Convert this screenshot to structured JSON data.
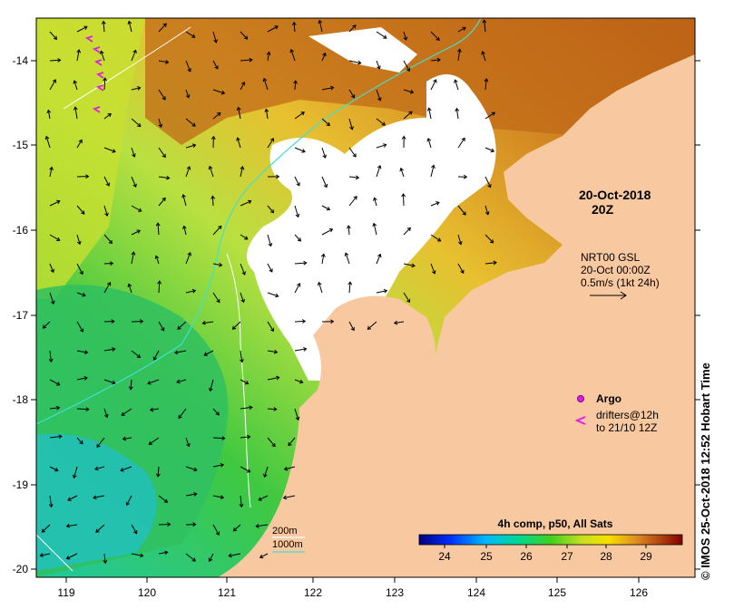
{
  "map": {
    "date_label_line1": "20-Oct-2018",
    "date_label_line2": "20Z",
    "current_source": "NRT00 GSL",
    "current_time": "20-Oct 00:00Z",
    "current_scale": "0.5m/s (1kt 24h)",
    "legend_argo": "Argo",
    "legend_drifters_line1": "drifters@12h",
    "legend_drifters_line2": "to 21/10 12Z",
    "isobath_200": "200m",
    "isobath_1000": "1000m",
    "colorbar_title": "4h comp, p50, All Sats",
    "colorbar_ticks": [
      "24",
      "25",
      "26",
      "27",
      "28",
      "29"
    ],
    "lon_ticks": [
      "119",
      "120",
      "121",
      "122",
      "123",
      "124",
      "125",
      "126"
    ],
    "lat_ticks": [
      "-14",
      "-15",
      "-16",
      "-17",
      "-18",
      "-19",
      "-20"
    ],
    "credit": "© IMOS 25-Oct-2018 12:52 Hobart Time",
    "colors": {
      "land": "#f8c8a0",
      "cloud": "#ffffff",
      "isobath": "#40e0d0",
      "drifter": "#e020e0"
    }
  }
}
